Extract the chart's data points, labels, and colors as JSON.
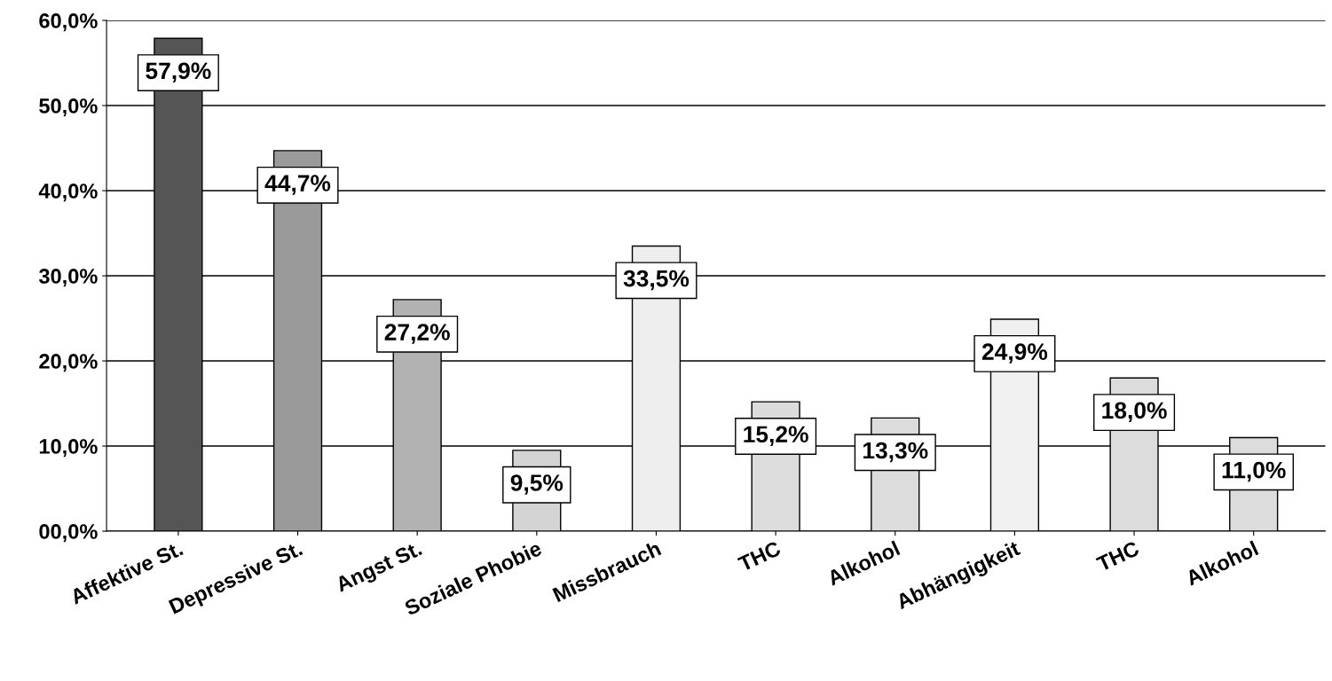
{
  "chart_data": {
    "type": "bar",
    "categories": [
      "Affektive St.",
      "Depressive St.",
      "Angst St.",
      "Soziale Phobie",
      "Missbrauch",
      "THC",
      "Alkohol",
      "Abhängigkeit",
      "THC",
      "Alkohol"
    ],
    "values": [
      57.9,
      44.7,
      27.2,
      9.5,
      33.5,
      15.2,
      13.3,
      24.9,
      18.0,
      11.0
    ],
    "colors": [
      "#555555",
      "#9a9a9a",
      "#b2b2b2",
      "#d4d4d4",
      "#eeeeee",
      "#dcdcdc",
      "#dcdcdc",
      "#f0f0f0",
      "#dcdcdc",
      "#dcdcdc"
    ],
    "value_labels": [
      "57,9%",
      "44,7%",
      "27,2%",
      "9,5%",
      "33,5%",
      "15,2%",
      "13,3%",
      "24,9%",
      "18,0%",
      "11,0%"
    ],
    "ylim": [
      0,
      60
    ],
    "yticks": [
      {
        "value": 0,
        "label": "00,0%"
      },
      {
        "value": 10,
        "label": "10,0%"
      },
      {
        "value": 20,
        "label": "20,0%"
      },
      {
        "value": 30,
        "label": "30,0%"
      },
      {
        "value": 40,
        "label": "40,0%"
      },
      {
        "value": 50,
        "label": "50,0%"
      },
      {
        "value": 60,
        "label": "60,0%"
      }
    ],
    "grid": "y"
  }
}
